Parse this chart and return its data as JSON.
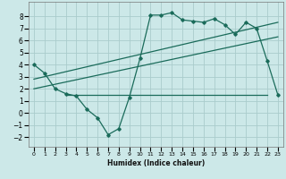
{
  "xlabel": "Humidex (Indice chaleur)",
  "bg_color": "#cce8e8",
  "grid_color": "#aacccc",
  "line_color": "#1a6b5a",
  "xlim": [
    -0.5,
    23.5
  ],
  "ylim": [
    -2.8,
    9.2
  ],
  "xticks": [
    0,
    1,
    2,
    3,
    4,
    5,
    6,
    7,
    8,
    9,
    10,
    11,
    12,
    13,
    14,
    15,
    16,
    17,
    18,
    19,
    20,
    21,
    22,
    23
  ],
  "yticks": [
    -2,
    -1,
    0,
    1,
    2,
    3,
    4,
    5,
    6,
    7,
    8
  ],
  "line1_x": [
    0,
    1,
    2,
    3,
    4,
    5,
    6,
    7,
    8,
    9,
    10,
    11,
    12,
    13,
    14,
    15,
    16,
    17,
    18,
    19,
    20,
    21,
    22,
    23
  ],
  "line1_y": [
    4.0,
    3.3,
    2.0,
    1.6,
    1.4,
    0.3,
    -0.4,
    -1.8,
    -1.3,
    1.3,
    4.5,
    8.1,
    8.1,
    8.3,
    7.7,
    7.6,
    7.5,
    7.8,
    7.3,
    6.5,
    7.5,
    7.0,
    4.3,
    1.5
  ],
  "line2_x": [
    3,
    22
  ],
  "line2_y": [
    1.5,
    1.5
  ],
  "line3_x": [
    0,
    23
  ],
  "line3_y": [
    2.0,
    6.3
  ],
  "line4_x": [
    0,
    23
  ],
  "line4_y": [
    2.8,
    7.5
  ]
}
